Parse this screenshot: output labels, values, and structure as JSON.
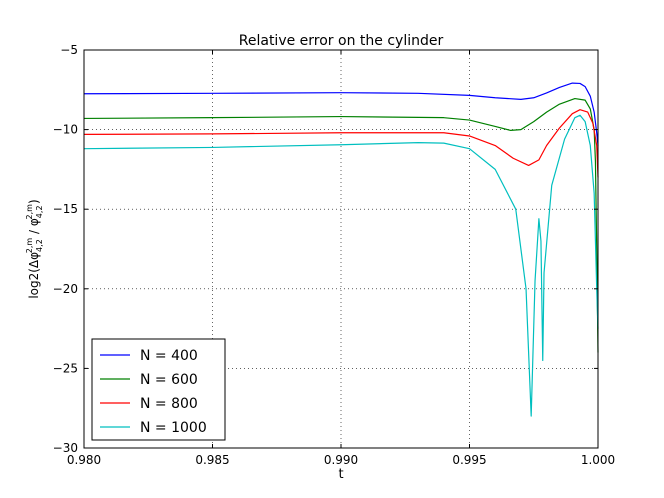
{
  "chart_data": {
    "type": "line",
    "title": "Relative error on the cylinder",
    "xlabel": "t",
    "ylabel": "log2(Δφ",
    "ylabel_sub": "4,2",
    "ylabel_sup": "2,m",
    "ylabel_mid": " / φ",
    "ylabel_close": ")",
    "xlim": [
      0.98,
      1.0
    ],
    "ylim": [
      -30,
      -5
    ],
    "xticks": [
      "0.980",
      "0.985",
      "0.990",
      "0.995",
      "1.000"
    ],
    "xtick_values": [
      0.98,
      0.985,
      0.99,
      0.995,
      1.0
    ],
    "yticks": [
      "−5",
      "−10",
      "−15",
      "−20",
      "−25",
      "−30"
    ],
    "ytick_values": [
      -5,
      -10,
      -15,
      -20,
      -25,
      -30
    ],
    "grid": true,
    "legend_position": "bottom-left",
    "series": [
      {
        "name": "N = 400",
        "color": "#0000ff",
        "points": [
          [
            0.98,
            -7.75
          ],
          [
            0.985,
            -7.72
          ],
          [
            0.99,
            -7.68
          ],
          [
            0.993,
            -7.72
          ],
          [
            0.995,
            -7.85
          ],
          [
            0.996,
            -8.0
          ],
          [
            0.997,
            -8.1
          ],
          [
            0.9975,
            -8.0
          ],
          [
            0.998,
            -7.7
          ],
          [
            0.9985,
            -7.35
          ],
          [
            0.999,
            -7.08
          ],
          [
            0.9993,
            -7.1
          ],
          [
            0.9995,
            -7.3
          ],
          [
            0.9997,
            -7.9
          ],
          [
            0.99985,
            -8.9
          ],
          [
            0.99995,
            -10.2
          ],
          [
            1.0,
            -11.0
          ]
        ]
      },
      {
        "name": "N = 600",
        "color": "#008000",
        "points": [
          [
            0.98,
            -9.3
          ],
          [
            0.985,
            -9.25
          ],
          [
            0.99,
            -9.18
          ],
          [
            0.994,
            -9.25
          ],
          [
            0.995,
            -9.4
          ],
          [
            0.996,
            -9.8
          ],
          [
            0.9966,
            -10.05
          ],
          [
            0.997,
            -10.0
          ],
          [
            0.9975,
            -9.5
          ],
          [
            0.998,
            -8.9
          ],
          [
            0.9985,
            -8.4
          ],
          [
            0.9991,
            -8.05
          ],
          [
            0.9995,
            -8.15
          ],
          [
            0.9997,
            -8.7
          ],
          [
            0.99985,
            -10.0
          ],
          [
            0.9999,
            -12.0
          ],
          [
            0.99995,
            -17.5
          ],
          [
            1.0,
            -24.0
          ]
        ]
      },
      {
        "name": "N = 800",
        "color": "#ff0000",
        "points": [
          [
            0.98,
            -10.3
          ],
          [
            0.985,
            -10.27
          ],
          [
            0.99,
            -10.2
          ],
          [
            0.994,
            -10.2
          ],
          [
            0.995,
            -10.4
          ],
          [
            0.996,
            -11.0
          ],
          [
            0.9967,
            -11.8
          ],
          [
            0.9973,
            -12.25
          ],
          [
            0.9977,
            -11.9
          ],
          [
            0.998,
            -11.0
          ],
          [
            0.9985,
            -9.9
          ],
          [
            0.999,
            -9.0
          ],
          [
            0.9993,
            -8.75
          ],
          [
            0.9996,
            -8.9
          ],
          [
            0.9998,
            -9.6
          ],
          [
            0.99995,
            -11.0
          ],
          [
            1.0,
            -13.0
          ]
        ]
      },
      {
        "name": "N = 1000",
        "color": "#00bfbf",
        "points": [
          [
            0.98,
            -11.2
          ],
          [
            0.985,
            -11.12
          ],
          [
            0.99,
            -10.95
          ],
          [
            0.993,
            -10.82
          ],
          [
            0.994,
            -10.85
          ],
          [
            0.995,
            -11.2
          ],
          [
            0.996,
            -12.5
          ],
          [
            0.9968,
            -15.0
          ],
          [
            0.9972,
            -20.0
          ],
          [
            0.9974,
            -28.0
          ],
          [
            0.99755,
            -19.5
          ],
          [
            0.9977,
            -15.6
          ],
          [
            0.99778,
            -17.0
          ],
          [
            0.99785,
            -24.5
          ],
          [
            0.9979,
            -19.0
          ],
          [
            0.9982,
            -13.5
          ],
          [
            0.9987,
            -10.6
          ],
          [
            0.9991,
            -9.25
          ],
          [
            0.9993,
            -9.1
          ],
          [
            0.9995,
            -9.5
          ],
          [
            0.9997,
            -11.0
          ],
          [
            0.99985,
            -14.0
          ],
          [
            0.99995,
            -20.0
          ],
          [
            1.0,
            -22.5
          ]
        ]
      }
    ]
  }
}
